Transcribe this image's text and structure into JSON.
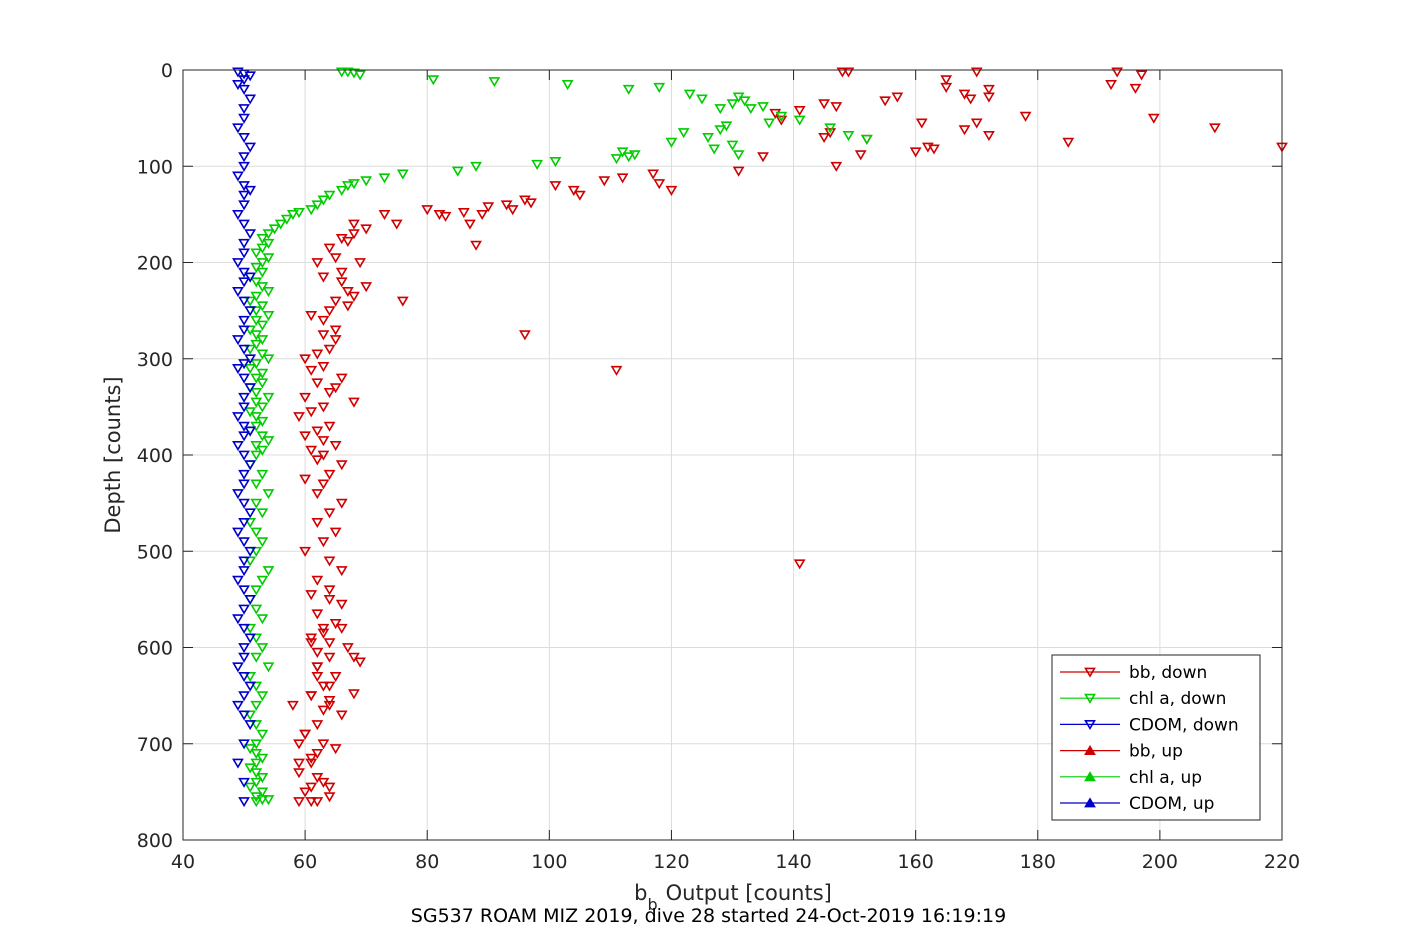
{
  "chart_data": {
    "type": "scatter",
    "xlabel_main": "b",
    "xlabel_sub": "b",
    "xlabel_rest": "Output [counts]",
    "ylabel": "Depth [counts]",
    "caption": "SG537 ROAM MIZ 2019, dive 28 started 24-Oct-2019 16:19:19",
    "xlim": [
      40,
      220
    ],
    "ylim": [
      800,
      0
    ],
    "xticks": [
      40,
      60,
      80,
      100,
      120,
      140,
      160,
      180,
      200,
      220
    ],
    "yticks": [
      0,
      100,
      200,
      300,
      400,
      500,
      600,
      700,
      800
    ],
    "y_reversed": true,
    "grid": true,
    "legend_position": "bottom-right",
    "legend": [
      {
        "label": "bb, down",
        "color": "#d00000",
        "marker": "triangle-down"
      },
      {
        "label": "chl a, down",
        "color": "#00cc00",
        "marker": "triangle-down"
      },
      {
        "label": "CDOM, down",
        "color": "#0000cc",
        "marker": "triangle-down"
      },
      {
        "label": "bb, up",
        "color": "#d00000",
        "marker": "triangle-up"
      },
      {
        "label": "chl a, up",
        "color": "#00cc00",
        "marker": "triangle-up"
      },
      {
        "label": "CDOM, up",
        "color": "#0000cc",
        "marker": "triangle-up"
      }
    ],
    "series": [
      {
        "name": "bb, down",
        "color": "#d00000",
        "marker": "triangle-down",
        "x": [
          148,
          149,
          165,
          170,
          193,
          197,
          192,
          165,
          168,
          172,
          169,
          172,
          145,
          141,
          137,
          147,
          155,
          157,
          138,
          178,
          196,
          170,
          199,
          146,
          152,
          185,
          209,
          160,
          162,
          161,
          168,
          172,
          145,
          163,
          151,
          220,
          135,
          131,
          147,
          117,
          112,
          109,
          104,
          96,
          101,
          105,
          118,
          120,
          97,
          94,
          89,
          93,
          86,
          90,
          83,
          87,
          80,
          82,
          88,
          73,
          70,
          75,
          68,
          66,
          68,
          67,
          64,
          65,
          69,
          66,
          63,
          66,
          68,
          70,
          62,
          65,
          67,
          64,
          61,
          63,
          65,
          67,
          76,
          63,
          65,
          64,
          62,
          60,
          63,
          61,
          66,
          62,
          65,
          64,
          60,
          68,
          63,
          59,
          61,
          64,
          62,
          60,
          63,
          65,
          61,
          63,
          62,
          66,
          64,
          60,
          63,
          62,
          66,
          64,
          62,
          65,
          63,
          60,
          64,
          66,
          62,
          64,
          61,
          96,
          111,
          141,
          64,
          66,
          62,
          65,
          63,
          61,
          67,
          64,
          62,
          65,
          63,
          61,
          64,
          66,
          62,
          60,
          63,
          65,
          61,
          61,
          62,
          64,
          68,
          69,
          62,
          63,
          64,
          68,
          59,
          61,
          59,
          63,
          60,
          64,
          62,
          61,
          59,
          60,
          59,
          62,
          61,
          62,
          64,
          58,
          62,
          64,
          63,
          61,
          66
        ],
        "y": [
          2,
          2,
          10,
          2,
          2,
          5,
          15,
          18,
          25,
          20,
          30,
          28,
          35,
          42,
          45,
          38,
          32,
          28,
          52,
          48,
          19,
          55,
          50,
          65,
          72,
          75,
          60,
          85,
          80,
          55,
          62,
          68,
          70,
          82,
          88,
          80,
          90,
          105,
          100,
          108,
          112,
          115,
          125,
          135,
          120,
          130,
          118,
          125,
          138,
          145,
          150,
          140,
          148,
          142,
          152,
          160,
          145,
          150,
          182,
          150,
          165,
          160,
          170,
          175,
          160,
          178,
          185,
          195,
          200,
          210,
          215,
          220,
          235,
          225,
          200,
          240,
          245,
          250,
          255,
          260,
          270,
          230,
          240,
          275,
          280,
          290,
          295,
          300,
          308,
          312,
          320,
          325,
          330,
          335,
          340,
          345,
          350,
          360,
          355,
          370,
          375,
          380,
          385,
          390,
          395,
          400,
          405,
          410,
          420,
          425,
          430,
          440,
          450,
          460,
          470,
          480,
          490,
          500,
          510,
          520,
          530,
          540,
          545,
          275,
          312,
          513,
          550,
          555,
          565,
          575,
          580,
          595,
          600,
          610,
          620,
          630,
          640,
          650,
          660,
          670,
          680,
          690,
          700,
          705,
          715,
          720,
          735,
          745,
          610,
          615,
          605,
          665,
          655,
          648,
          760,
          760,
          730,
          740,
          750,
          755,
          760,
          745,
          720,
          690,
          700,
          710,
          650,
          630,
          640,
          660,
          620,
          595,
          585,
          590,
          580
        ],
        "note": "approximate"
      },
      {
        "name": "chl a, down",
        "color": "#00cc00",
        "marker": "triangle-down",
        "x": [
          66,
          67,
          68,
          69,
          81,
          91,
          103,
          113,
          118,
          123,
          125,
          128,
          130,
          131,
          132,
          135,
          133,
          136,
          138,
          141,
          146,
          149,
          152,
          126,
          128,
          129,
          130,
          131,
          127,
          122,
          120,
          112,
          111,
          113,
          114,
          98,
          101,
          88,
          85,
          76,
          73,
          70,
          68,
          67,
          66,
          64,
          63,
          62,
          61,
          59,
          58,
          57,
          56,
          55,
          54,
          53,
          54,
          53,
          52,
          54,
          53,
          52,
          53,
          51,
          52,
          53,
          54,
          52,
          51,
          53,
          52,
          54,
          52,
          53,
          51,
          52,
          53,
          52,
          51,
          53,
          54,
          52,
          51,
          53,
          52,
          53,
          51,
          52,
          54,
          52,
          53,
          51,
          52,
          53,
          52,
          51,
          53,
          54,
          52,
          53,
          52,
          51,
          53,
          52,
          54,
          52,
          53,
          51,
          52,
          53,
          52,
          51,
          54,
          53,
          52,
          51,
          52,
          53,
          51,
          52,
          53,
          52,
          54,
          51,
          52,
          53,
          52,
          51,
          52,
          53,
          52,
          51,
          52,
          53,
          52,
          51,
          52,
          53,
          52,
          51,
          53,
          52,
          54,
          52,
          53
        ],
        "y": [
          2,
          2,
          3,
          5,
          10,
          12,
          15,
          20,
          18,
          25,
          30,
          40,
          35,
          28,
          32,
          38,
          40,
          55,
          48,
          52,
          60,
          68,
          72,
          70,
          62,
          58,
          78,
          88,
          82,
          65,
          75,
          85,
          92,
          90,
          88,
          98,
          95,
          100,
          105,
          108,
          112,
          115,
          118,
          120,
          125,
          130,
          135,
          140,
          145,
          148,
          150,
          155,
          160,
          165,
          170,
          175,
          180,
          185,
          190,
          195,
          200,
          205,
          210,
          215,
          220,
          225,
          230,
          235,
          240,
          245,
          250,
          255,
          260,
          265,
          270,
          275,
          280,
          285,
          290,
          295,
          300,
          305,
          310,
          315,
          320,
          325,
          330,
          335,
          340,
          345,
          350,
          355,
          360,
          365,
          370,
          375,
          380,
          385,
          390,
          395,
          400,
          410,
          420,
          430,
          440,
          450,
          460,
          470,
          480,
          490,
          500,
          510,
          520,
          530,
          540,
          550,
          560,
          570,
          580,
          590,
          600,
          610,
          620,
          630,
          640,
          650,
          660,
          670,
          680,
          690,
          700,
          705,
          710,
          715,
          720,
          725,
          730,
          735,
          740,
          745,
          750,
          755,
          758,
          760,
          758
        ],
        "note": "approximate"
      },
      {
        "name": "CDOM, down",
        "color": "#0000cc",
        "marker": "triangle-down",
        "x": [
          49,
          50,
          51,
          50,
          49,
          50,
          51,
          50,
          50,
          49,
          50,
          51,
          50,
          50,
          49,
          50,
          51,
          50,
          50,
          49,
          50,
          51,
          50,
          50,
          49,
          50,
          51,
          50,
          49,
          50,
          51,
          50,
          50,
          49,
          50,
          51,
          50,
          49,
          50,
          51,
          50,
          50,
          49,
          50,
          51,
          50,
          49,
          50,
          51,
          50,
          50,
          49,
          50,
          51,
          50,
          49,
          50,
          51,
          50,
          50,
          49,
          50,
          51,
          50,
          49,
          50,
          51,
          50,
          50,
          49,
          50,
          51,
          50,
          49,
          50,
          51,
          50,
          49,
          50,
          50
        ],
        "y": [
          2,
          4,
          6,
          10,
          15,
          20,
          30,
          40,
          50,
          60,
          70,
          80,
          90,
          100,
          110,
          120,
          125,
          130,
          140,
          150,
          160,
          170,
          180,
          190,
          200,
          210,
          215,
          220,
          230,
          240,
          250,
          260,
          270,
          280,
          290,
          300,
          305,
          310,
          320,
          330,
          340,
          350,
          360,
          370,
          375,
          380,
          390,
          400,
          410,
          420,
          430,
          440,
          450,
          460,
          470,
          480,
          490,
          500,
          510,
          520,
          530,
          540,
          550,
          560,
          570,
          580,
          590,
          600,
          610,
          620,
          630,
          640,
          650,
          660,
          670,
          680,
          700,
          720,
          740,
          760
        ],
        "note": "approximate"
      },
      {
        "name": "bb, up",
        "color": "#d00000",
        "marker": "triangle-up",
        "x": [],
        "y": []
      },
      {
        "name": "chl a, up",
        "color": "#00cc00",
        "marker": "triangle-up",
        "x": [],
        "y": []
      },
      {
        "name": "CDOM, up",
        "color": "#0000cc",
        "marker": "triangle-up",
        "x": [],
        "y": []
      }
    ]
  }
}
